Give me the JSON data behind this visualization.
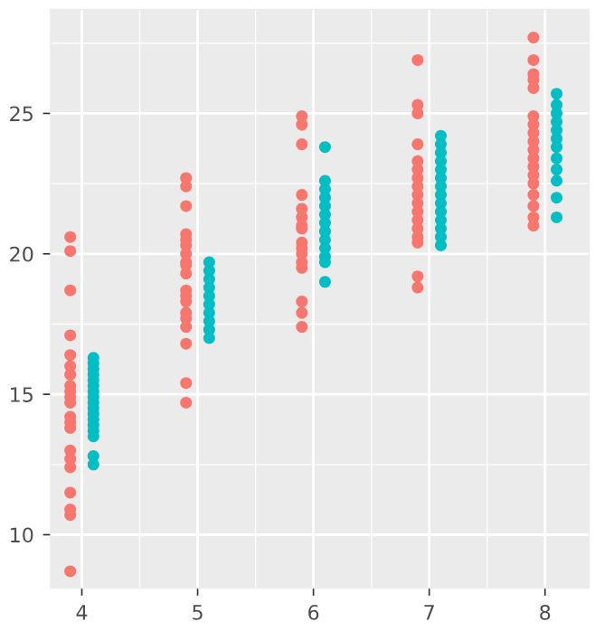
{
  "chart_data": {
    "type": "scatter",
    "xlim": [
      3.73,
      8.38
    ],
    "xticks": [
      4,
      5,
      6,
      7,
      8
    ],
    "ylim": [
      8.1,
      28.7
    ],
    "yticks": [
      10,
      15,
      20,
      25
    ],
    "grid": true,
    "marker": "circle",
    "series": [
      {
        "color": "#f8766d",
        "x": [
          3.9,
          3.9,
          3.9,
          3.9,
          3.9,
          3.9,
          3.9,
          3.9,
          3.9,
          3.9,
          3.9,
          3.9,
          3.9,
          3.9,
          3.9,
          3.9,
          3.9,
          3.9,
          3.9,
          3.9,
          3.9,
          4.9,
          4.9,
          4.9,
          4.9,
          4.9,
          4.9,
          4.9,
          4.9,
          4.9,
          4.9,
          4.9,
          4.9,
          4.9,
          4.9,
          4.9,
          4.9,
          4.9,
          4.9,
          4.9,
          5.9,
          5.9,
          5.9,
          5.9,
          5.9,
          5.9,
          5.9,
          5.9,
          5.9,
          5.9,
          5.9,
          5.9,
          5.9,
          5.9,
          5.9,
          5.9,
          6.9,
          6.9,
          6.9,
          6.9,
          6.9,
          6.9,
          6.9,
          6.9,
          6.9,
          6.9,
          6.9,
          6.9,
          6.9,
          6.9,
          6.9,
          6.9,
          6.9,
          7.9,
          7.9,
          7.9,
          7.9,
          7.9,
          7.9,
          7.9,
          7.9,
          7.9,
          7.9,
          7.9,
          7.9,
          7.9,
          7.9,
          7.9,
          7.9,
          7.9,
          7.9
        ],
        "values": [
          20.6,
          20.1,
          18.7,
          17.1,
          16.4,
          16.0,
          15.7,
          15.3,
          15.1,
          14.9,
          14.7,
          14.2,
          14.0,
          13.8,
          13.0,
          12.7,
          12.4,
          11.5,
          10.9,
          10.7,
          8.7,
          22.7,
          22.4,
          21.7,
          20.7,
          20.5,
          20.3,
          20.0,
          19.7,
          19.6,
          19.3,
          18.7,
          18.5,
          18.3,
          17.9,
          17.7,
          17.4,
          16.8,
          15.4,
          14.7,
          24.9,
          24.6,
          23.9,
          22.1,
          21.6,
          21.3,
          21.0,
          20.9,
          20.4,
          20.2,
          20.0,
          19.7,
          19.5,
          18.3,
          17.9,
          17.4,
          26.9,
          25.3,
          25.0,
          23.9,
          23.3,
          23.0,
          22.7,
          22.4,
          22.1,
          21.8,
          21.5,
          21.2,
          20.9,
          20.6,
          20.4,
          19.2,
          18.8,
          27.7,
          26.9,
          26.4,
          26.2,
          25.9,
          24.9,
          24.6,
          24.3,
          24.0,
          23.7,
          23.4,
          23.1,
          22.8,
          22.5,
          22.1,
          21.7,
          21.3,
          21.0
        ]
      },
      {
        "color": "#00bfc4",
        "x": [
          4.1,
          4.1,
          4.1,
          4.1,
          4.1,
          4.1,
          4.1,
          4.1,
          4.1,
          4.1,
          4.1,
          4.1,
          4.1,
          4.1,
          4.1,
          4.1,
          4.1,
          5.1,
          5.1,
          5.1,
          5.1,
          5.1,
          5.1,
          5.1,
          5.1,
          5.1,
          5.1,
          6.1,
          6.1,
          6.1,
          6.1,
          6.1,
          6.1,
          6.1,
          6.1,
          6.1,
          6.1,
          6.1,
          6.1,
          6.1,
          7.1,
          7.1,
          7.1,
          7.1,
          7.1,
          7.1,
          7.1,
          7.1,
          7.1,
          7.1,
          7.1,
          7.1,
          7.1,
          7.1,
          8.1,
          8.1,
          8.1,
          8.1,
          8.1,
          8.1,
          8.1,
          8.1,
          8.1,
          8.1,
          8.1,
          8.1
        ],
        "values": [
          16.3,
          16.1,
          15.9,
          15.7,
          15.5,
          15.3,
          15.1,
          14.9,
          14.7,
          14.5,
          14.3,
          14.1,
          13.9,
          13.7,
          13.5,
          12.8,
          12.5,
          19.7,
          19.4,
          19.1,
          18.8,
          18.5,
          18.2,
          17.9,
          17.6,
          17.3,
          17.0,
          23.8,
          22.6,
          22.3,
          22.0,
          21.7,
          21.4,
          21.1,
          20.8,
          20.5,
          20.2,
          19.9,
          19.7,
          19.0,
          24.2,
          23.9,
          23.6,
          23.3,
          23.0,
          22.7,
          22.4,
          22.1,
          21.8,
          21.5,
          21.2,
          20.9,
          20.6,
          20.3,
          25.7,
          25.3,
          25.0,
          24.7,
          24.4,
          24.1,
          23.8,
          23.4,
          23.0,
          22.6,
          22.0,
          21.3
        ]
      }
    ]
  }
}
